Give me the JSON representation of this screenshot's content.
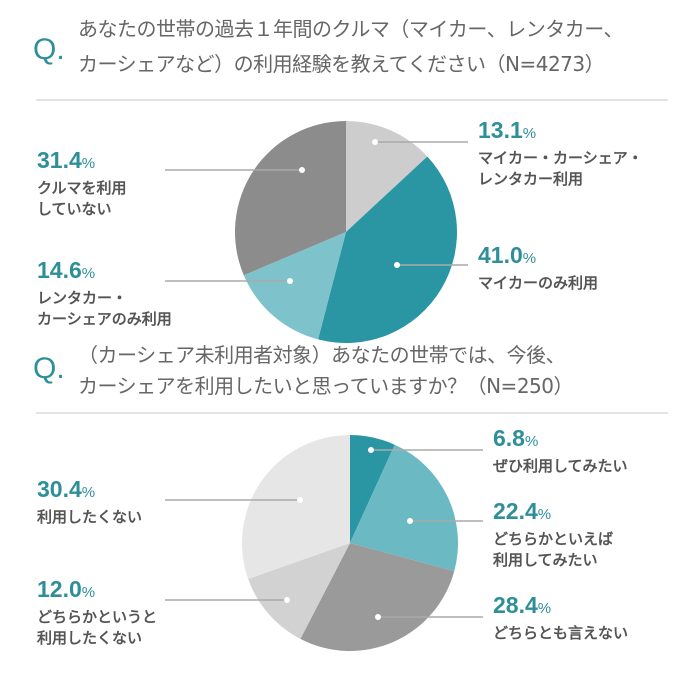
{
  "chart_data": [
    {
      "type": "pie",
      "title": "あなたの世帯の過去１年間のクルマ（マイカー、レンタカー、カーシェアなど）の利用経験を教えてください（N=4273）",
      "title_lines": [
        "あなたの世帯の過去１年間のクルマ（マイカー、レンタカー、",
        "カーシェアなど）の利用経験を教えてください（N=4273）"
      ],
      "q_mark": "Q.",
      "start": "top",
      "direction": "clockwise",
      "slices": [
        {
          "label": "マイカー・カーシェア・レンタカー利用",
          "label_lines": [
            "マイカー・カーシェア・",
            "レンタカー利用"
          ],
          "value": 13.1,
          "pct": "13.1",
          "color": "#cdcdcd"
        },
        {
          "label": "マイカーのみ利用",
          "label_lines": [
            "マイカーのみ利用"
          ],
          "value": 41.0,
          "pct": "41.0",
          "color": "#2a96a4"
        },
        {
          "label": "レンタカー・カーシェアのみ利用",
          "label_lines": [
            "レンタカー・",
            "カーシェアのみ利用"
          ],
          "value": 14.6,
          "pct": "14.6",
          "color": "#7ec3cb"
        },
        {
          "label": "クルマを利用していない",
          "label_lines": [
            "クルマを利用",
            "していない"
          ],
          "value": 31.4,
          "pct": "31.4",
          "color": "#8c8c8c"
        }
      ]
    },
    {
      "type": "pie",
      "title": "（カーシェア未利用者対象）あなたの世帯では、今後、カーシェアを利用したいと思っていますか？（N=250）",
      "title_lines": [
        "（カーシェア未利用者対象）あなたの世帯では、今後、",
        "カーシェアを利用したいと思っていますか？（N=250）"
      ],
      "q_mark": "Q.",
      "start": "top",
      "direction": "clockwise",
      "slices": [
        {
          "label": "ぜひ利用してみたい",
          "label_lines": [
            "ぜひ利用してみたい"
          ],
          "value": 6.8,
          "pct": "6.8",
          "color": "#2a96a4"
        },
        {
          "label": "どちらかといえば利用してみたい",
          "label_lines": [
            "どちらかといえば",
            "利用してみたい"
          ],
          "value": 22.4,
          "pct": "22.4",
          "color": "#6bb9c2"
        },
        {
          "label": "どちらとも言えない",
          "label_lines": [
            "どちらとも言えない"
          ],
          "value": 28.4,
          "pct": "28.4",
          "color": "#9a9a9a"
        },
        {
          "label": "どちらかというと利用したくない",
          "label_lines": [
            "どちらかというと",
            "利用したくない"
          ],
          "value": 12.0,
          "pct": "12.0",
          "color": "#d2d2d2"
        },
        {
          "label": "利用したくない",
          "label_lines": [
            "利用したくない"
          ],
          "value": 30.4,
          "pct": "30.4",
          "color": "#e6e6e6"
        }
      ]
    }
  ],
  "percent_sign": "%"
}
